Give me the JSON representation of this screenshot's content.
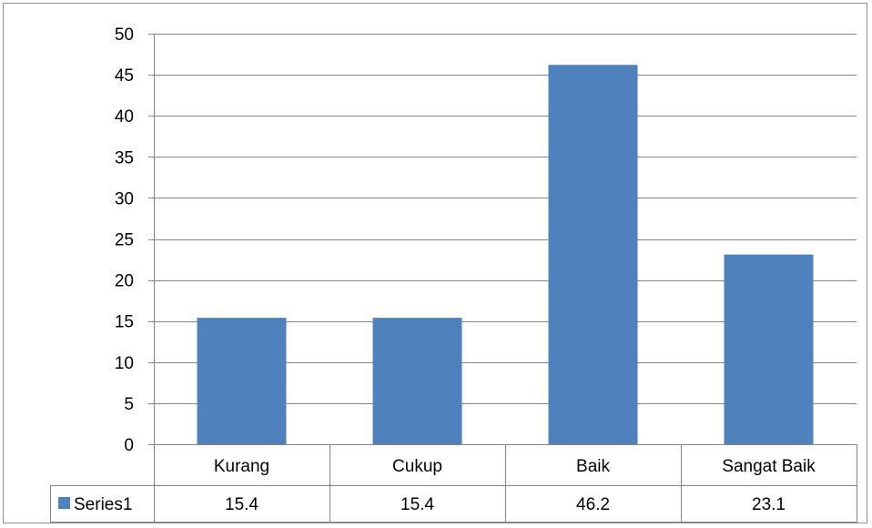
{
  "chart_data": {
    "type": "bar",
    "categories": [
      "Kurang",
      "Cukup",
      "Baik",
      "Sangat Baik"
    ],
    "series": [
      {
        "name": "Series1",
        "values": [
          15.4,
          15.4,
          46.2,
          23.1
        ],
        "color": "#4f81bd"
      }
    ],
    "y_ticks": [
      "0",
      "5",
      "10",
      "15",
      "20",
      "25",
      "30",
      "35",
      "40",
      "45",
      "50"
    ],
    "ylim": [
      0,
      50
    ],
    "grid": true,
    "legend": "data-table",
    "data_table": {
      "row_label": "Series1",
      "values": [
        "15.4",
        "15.4",
        "46.2",
        "23.1"
      ]
    },
    "colors": {
      "bar": "#4f81bd",
      "gridline": "#868686",
      "border": "#8e8e8e"
    }
  }
}
